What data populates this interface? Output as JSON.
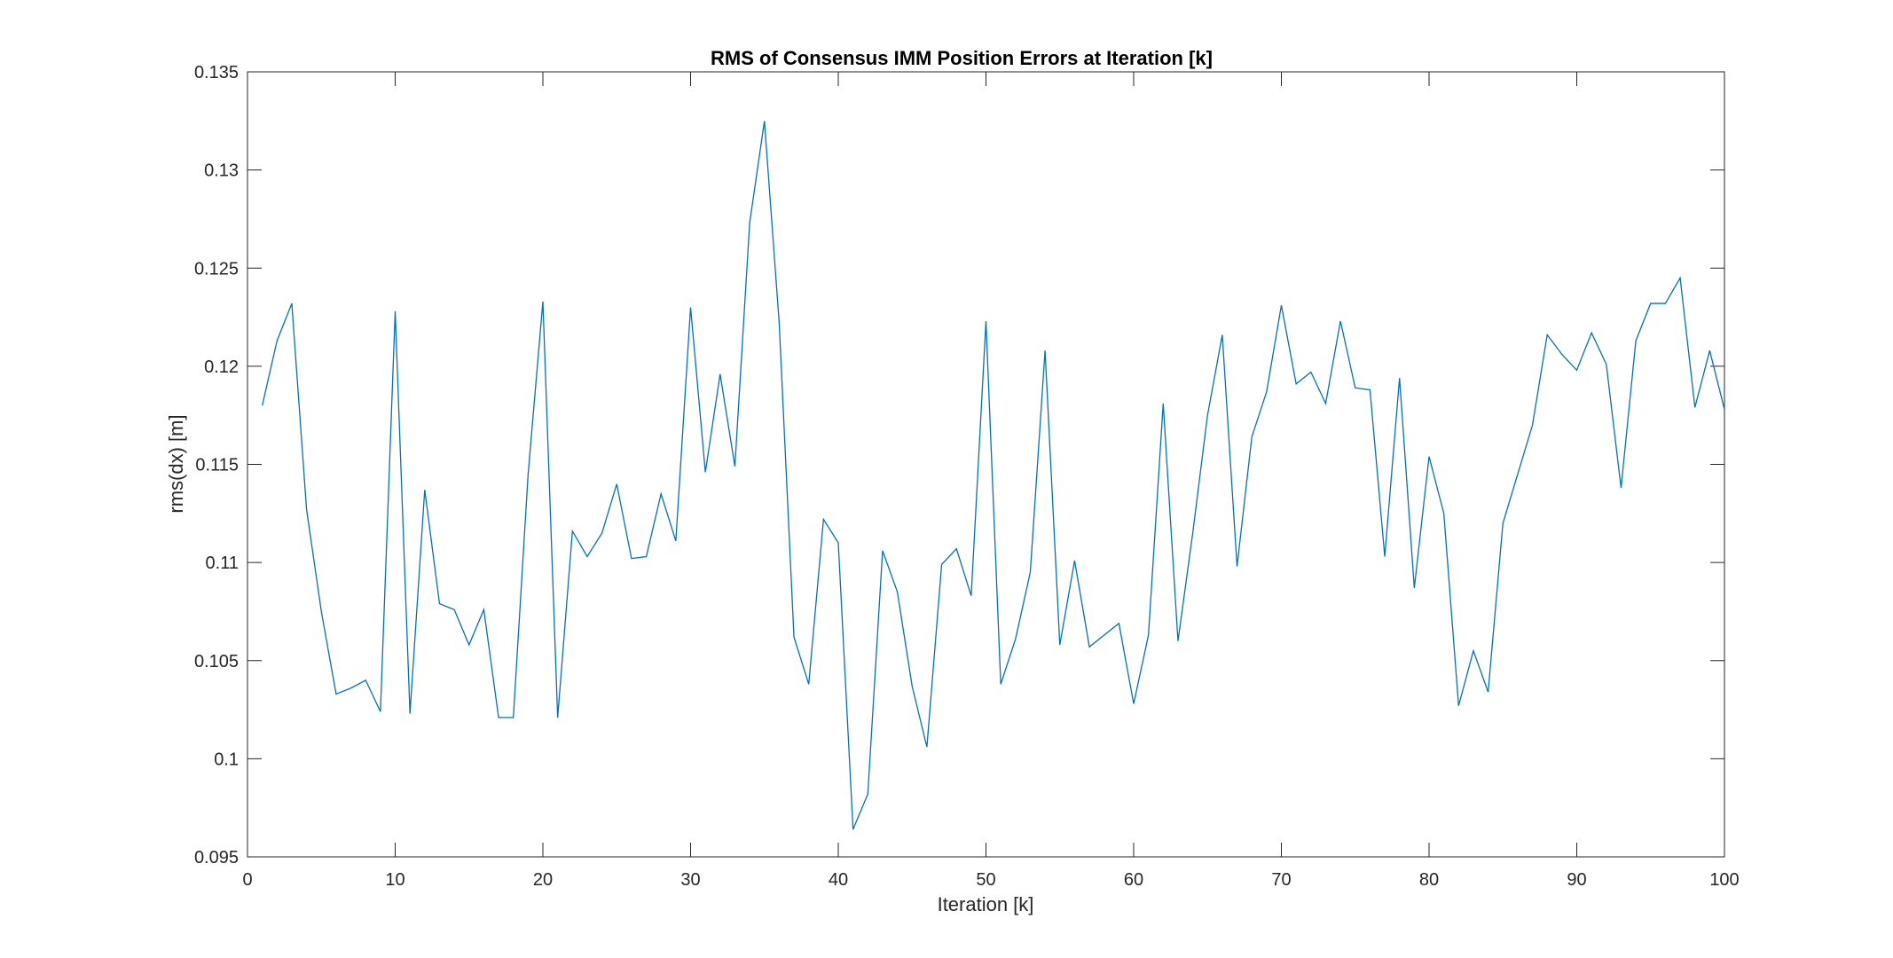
{
  "chart_data": {
    "type": "line",
    "title": "RMS of Consensus IMM Position Errors at Iteration [k]",
    "xlabel": "Iteration [k]",
    "ylabel": "rms(dx) [m]",
    "xlim": [
      0,
      100
    ],
    "ylim": [
      0.095,
      0.135
    ],
    "xticks": [
      0,
      10,
      20,
      30,
      40,
      50,
      60,
      70,
      80,
      90,
      100
    ],
    "yticks": [
      0.095,
      0.1,
      0.105,
      0.11,
      0.115,
      0.12,
      0.125,
      0.13,
      0.135
    ],
    "xtick_labels": [
      "0",
      "10",
      "20",
      "30",
      "40",
      "50",
      "60",
      "70",
      "80",
      "90",
      "100"
    ],
    "ytick_labels": [
      "0.095",
      "0.1",
      "0.105",
      "0.11",
      "0.115",
      "0.12",
      "0.125",
      "0.13",
      "0.135"
    ],
    "grid": false,
    "line_color": "#0072BD",
    "x": [
      1,
      2,
      3,
      4,
      5,
      6,
      7,
      8,
      9,
      10,
      11,
      12,
      13,
      14,
      15,
      16,
      17,
      18,
      19,
      20,
      21,
      22,
      23,
      24,
      25,
      26,
      27,
      28,
      29,
      30,
      31,
      32,
      33,
      34,
      35,
      36,
      37,
      38,
      39,
      40,
      41,
      42,
      43,
      44,
      45,
      46,
      47,
      48,
      49,
      50,
      51,
      52,
      53,
      54,
      55,
      56,
      57,
      58,
      59,
      60,
      61,
      62,
      63,
      64,
      65,
      66,
      67,
      68,
      69,
      70,
      71,
      72,
      73,
      74,
      75,
      76,
      77,
      78,
      79,
      80,
      81,
      82,
      83,
      84,
      85,
      86,
      87,
      88,
      89,
      90,
      91,
      92,
      93,
      94,
      95,
      96,
      97,
      98,
      99,
      100
    ],
    "y": [
      0.118,
      0.1213,
      0.1232,
      0.1127,
      0.1075,
      0.1033,
      0.1036,
      0.104,
      0.1024,
      0.1228,
      0.1023,
      0.1137,
      0.1079,
      0.1076,
      0.1058,
      0.1076,
      0.1021,
      0.1021,
      0.1145,
      0.1233,
      0.1021,
      0.1116,
      0.1103,
      0.1115,
      0.114,
      0.1102,
      0.1103,
      0.1135,
      0.1111,
      0.123,
      0.1146,
      0.1196,
      0.1149,
      0.1273,
      0.1325,
      0.1222,
      0.1062,
      0.1038,
      0.1122,
      0.111,
      0.0964,
      0.0982,
      0.1106,
      0.1085,
      0.1037,
      0.1006,
      0.1099,
      0.1107,
      0.1083,
      0.1223,
      0.1038,
      0.1061,
      0.1095,
      0.1208,
      0.1058,
      0.1101,
      0.1057,
      0.1063,
      0.1069,
      0.1028,
      0.1063,
      0.1181,
      0.106,
      0.1115,
      0.1175,
      0.1216,
      0.1098,
      0.1164,
      0.1187,
      0.1231,
      0.1191,
      0.1197,
      0.1181,
      0.1223,
      0.1189,
      0.1188,
      0.1103,
      0.1194,
      0.1087,
      0.1154,
      0.1125,
      0.1027,
      0.1055,
      0.1034,
      0.112,
      0.1145,
      0.117,
      0.1216,
      0.1206,
      0.1198,
      0.1217,
      0.1201,
      0.1138,
      0.1213,
      0.1232,
      0.1232,
      0.1245,
      0.1179,
      0.1208,
      0.1178
    ]
  }
}
